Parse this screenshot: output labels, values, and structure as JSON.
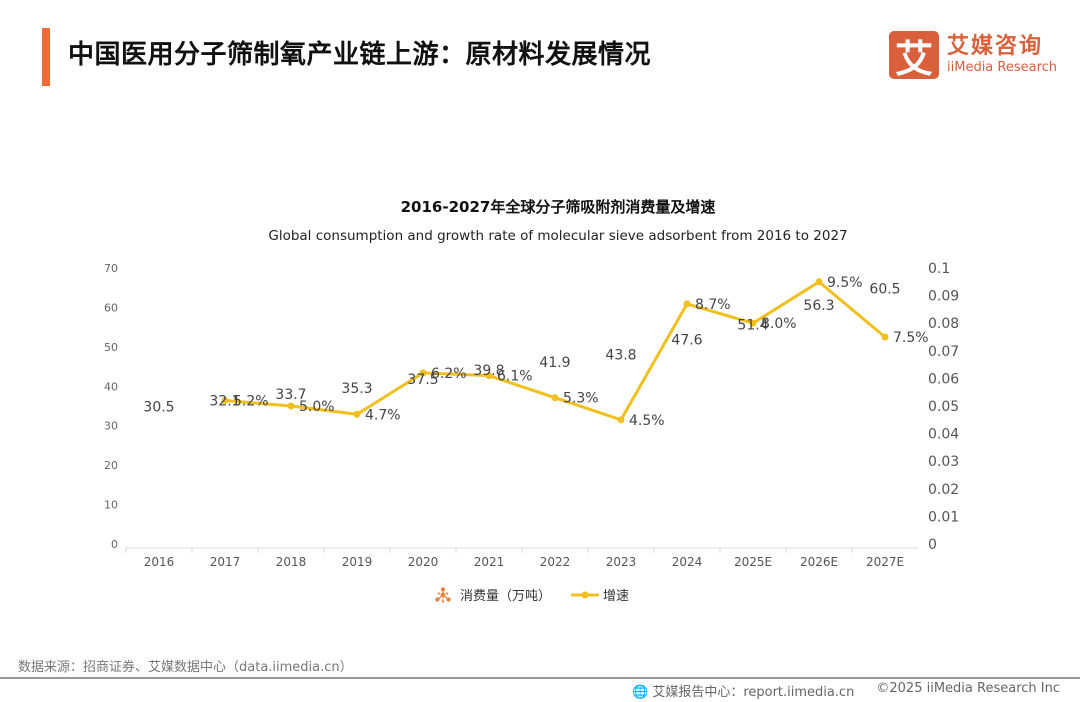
{
  "header": {
    "title": "中国医用分子筛制氧产业链上游：原材料发展情况"
  },
  "logo": {
    "mark": "艾",
    "cn": "艾媒咨询",
    "en": "iiMedia Research"
  },
  "chart_data": {
    "type": "bar",
    "title": "2016-2027年全球分子筛吸附剂消费量及增速",
    "subtitle": "Global consumption and growth rate of molecular sieve adsorbent from 2016 to 2027",
    "categories": [
      "2016",
      "2017",
      "2018",
      "2019",
      "2020",
      "2021",
      "2022",
      "2023",
      "2024",
      "2025E",
      "2026E",
      "2027E"
    ],
    "series": [
      {
        "name": "消费量（万吨）",
        "type": "pictograph-bar",
        "axis": "left",
        "values": [
          30.5,
          32.1,
          33.7,
          35.3,
          37.5,
          39.8,
          41.9,
          43.8,
          47.6,
          51.4,
          56.3,
          60.5
        ],
        "labels": [
          "30.5",
          "32.1",
          "33.7",
          "35.3",
          "37.5",
          "39.8",
          "41.9",
          "43.8",
          "47.6",
          "51.4",
          "56.3",
          "60.5"
        ],
        "color": "#e8823f"
      },
      {
        "name": "增速",
        "type": "line",
        "axis": "right",
        "values": [
          null,
          0.052,
          0.05,
          0.047,
          0.062,
          0.061,
          0.053,
          0.045,
          0.087,
          0.08,
          0.095,
          0.075
        ],
        "labels": [
          "",
          "5.2%",
          "5.0%",
          "4.7%",
          "6.2%",
          "6.1%",
          "5.3%",
          "4.5%",
          "8.7%",
          "8.0%",
          "9.5%",
          "7.5%"
        ],
        "color": "#f2c01e"
      }
    ],
    "ylim_left": [
      0,
      70
    ],
    "yticks_left": [
      "0",
      "10",
      "20",
      "30",
      "40",
      "50",
      "60",
      "70"
    ],
    "ylim_right": [
      0,
      0.1
    ],
    "yticks_right": [
      "0",
      "0.01",
      "0.02",
      "0.03",
      "0.04",
      "0.05",
      "0.06",
      "0.07",
      "0.08",
      "0.09",
      "0.1"
    ],
    "grid": false,
    "legend": "bottom"
  },
  "footer": {
    "source": "数据来源：招商证券、艾媒数据中心（data.iimedia.cn）",
    "report": "艾媒报告中心：report.iimedia.cn",
    "copyright": "©2025  iiMedia Research  Inc"
  }
}
